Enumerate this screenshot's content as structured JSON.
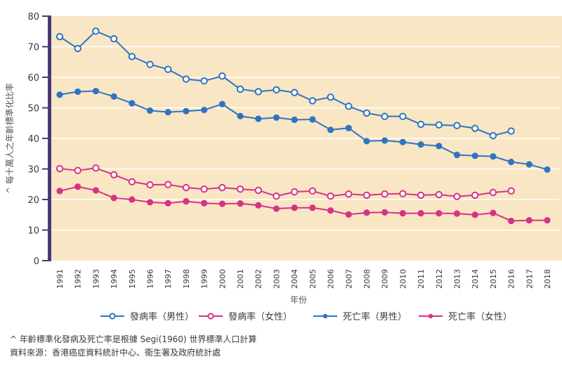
{
  "chart_data": {
    "type": "line",
    "title": "",
    "xlabel": "年份",
    "ylabel": "^ 每十萬人之年齡標準化比率",
    "ylim": [
      0,
      80
    ],
    "yticks": [
      0,
      10,
      20,
      30,
      40,
      50,
      60,
      70,
      80
    ],
    "grid": true,
    "legend_position": "bottom",
    "x": [
      "1991",
      "1992",
      "1993",
      "1994",
      "1995",
      "1996",
      "1997",
      "1998",
      "1999",
      "2000",
      "2001",
      "2002",
      "2003",
      "2004",
      "2005",
      "2006",
      "2007",
      "2008",
      "2009",
      "2010",
      "2011",
      "2012",
      "2013",
      "2014",
      "2015",
      "2016",
      "2017",
      "2018"
    ],
    "series": [
      {
        "name": "發病率（男性）",
        "color": "#2e75c0",
        "marker": "hollow",
        "values": [
          73.3,
          69.4,
          75.1,
          72.6,
          66.8,
          64.2,
          62.6,
          59.4,
          58.8,
          60.4,
          56.1,
          55.3,
          55.9,
          55.0,
          52.3,
          53.5,
          50.5,
          48.3,
          47.2,
          47.2,
          44.6,
          44.4,
          44.2,
          43.3,
          40.9,
          42.4,
          null,
          null
        ]
      },
      {
        "name": "發病率（女性）",
        "color": "#d63384",
        "marker": "hollow",
        "values": [
          30.1,
          29.5,
          30.3,
          28.1,
          25.8,
          24.8,
          24.9,
          23.9,
          23.4,
          23.9,
          23.4,
          23.0,
          21.1,
          22.5,
          22.8,
          21.1,
          21.8,
          21.4,
          21.8,
          21.9,
          21.4,
          21.6,
          21.0,
          21.4,
          22.3,
          22.8,
          null,
          null
        ]
      },
      {
        "name": "死亡率（男性）",
        "color": "#2e75c0",
        "marker": "filled",
        "values": [
          54.3,
          55.3,
          55.5,
          53.7,
          51.5,
          49.1,
          48.6,
          48.9,
          49.3,
          51.2,
          47.3,
          46.4,
          46.8,
          46.1,
          46.2,
          42.8,
          43.4,
          39.1,
          39.3,
          38.8,
          38.0,
          37.5,
          34.6,
          34.3,
          34.1,
          32.3,
          31.5,
          29.8
        ]
      },
      {
        "name": "死亡率（女性）",
        "color": "#d63384",
        "marker": "filled",
        "values": [
          22.8,
          24.2,
          23.0,
          20.5,
          20.0,
          19.1,
          18.8,
          19.4,
          18.8,
          18.6,
          18.7,
          18.1,
          17.0,
          17.3,
          17.3,
          16.4,
          15.1,
          15.7,
          15.8,
          15.5,
          15.5,
          15.5,
          15.4,
          15.0,
          15.6,
          13.0,
          13.2,
          13.2
        ]
      }
    ]
  },
  "style": {
    "plot_bg": "#f9e6c4",
    "axis_color": "#4a3a78",
    "grid_color": "#ffffff"
  },
  "footnotes": {
    "note": "^ 年齡標準化發病及死亡率是根據 Segi(1960) 世界標準人口計算",
    "source": "資料來源：香港癌症資料統計中心、衞生署及政府統計處"
  }
}
